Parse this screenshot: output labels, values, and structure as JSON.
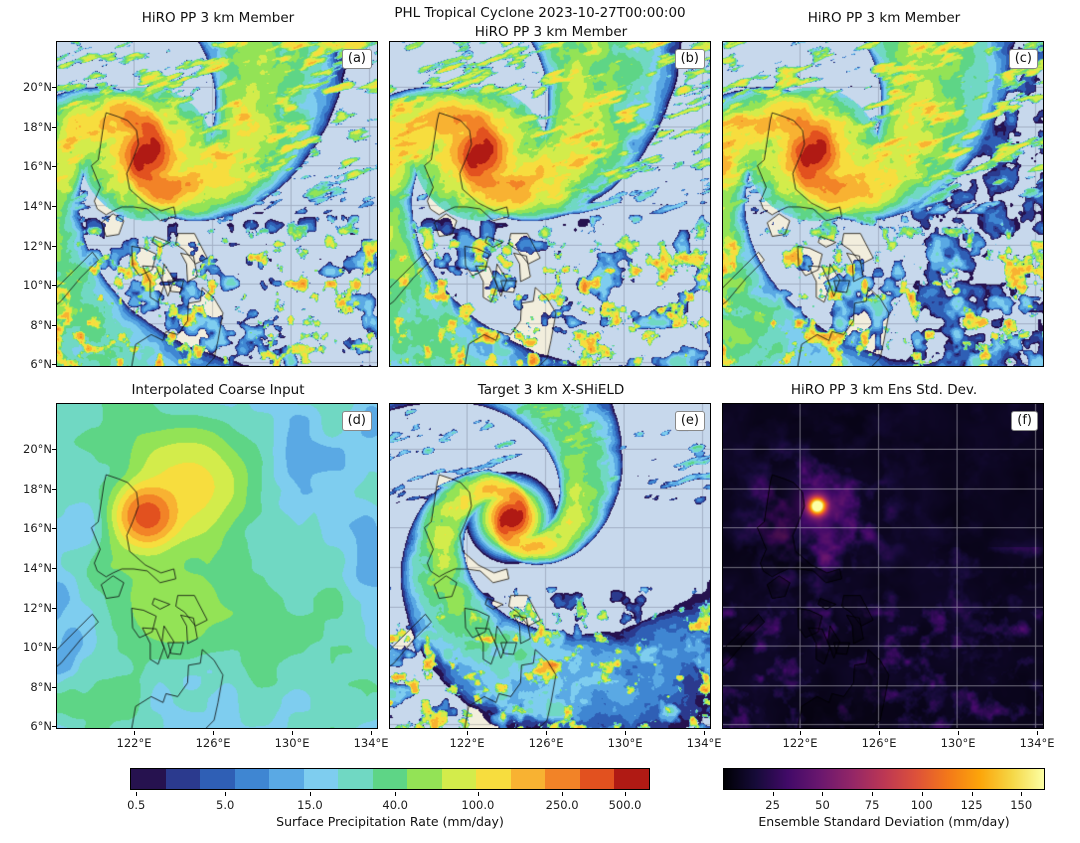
{
  "figure": {
    "suptitle": "PHL Tropical Cyclone 2023-10-27T00:00:00"
  },
  "panels": [
    {
      "key": "a",
      "title": "HiRO PP 3 km Member",
      "corner_label": "(a)",
      "field": "member",
      "seed": 11,
      "drizzle": false,
      "row": 0,
      "col": 0
    },
    {
      "key": "b",
      "title": "HiRO PP 3 km Member",
      "corner_label": "(b)",
      "field": "member",
      "seed": 22,
      "drizzle": false,
      "row": 0,
      "col": 1
    },
    {
      "key": "c",
      "title": "HiRO PP 3 km Member",
      "corner_label": "(c)",
      "field": "member",
      "seed": 37,
      "drizzle": true,
      "row": 0,
      "col": 2
    },
    {
      "key": "d",
      "title": "Interpolated Coarse Input",
      "corner_label": "(d)",
      "field": "coarse",
      "seed": 44,
      "drizzle": false,
      "row": 1,
      "col": 0
    },
    {
      "key": "e",
      "title": "Target 3 km X-SHiELD",
      "corner_label": "(e)",
      "field": "target",
      "seed": 55,
      "drizzle": false,
      "row": 1,
      "col": 1
    },
    {
      "key": "f",
      "title": "HiRO PP 3 km Ens Std. Dev.",
      "corner_label": "(f)",
      "field": "stddev",
      "seed": 66,
      "drizzle": false,
      "row": 1,
      "col": 2
    }
  ],
  "axes": {
    "lon_range": [
      118.1,
      134.4
    ],
    "lat_range": [
      5.8,
      22.3
    ],
    "lat_ticks": [
      {
        "value": 20,
        "label": "20°N"
      },
      {
        "value": 18,
        "label": "18°N"
      },
      {
        "value": 16,
        "label": "16°N"
      },
      {
        "value": 14,
        "label": "14°N"
      },
      {
        "value": 12,
        "label": "12°N"
      },
      {
        "value": 10,
        "label": "10°N"
      },
      {
        "value": 8,
        "label": "8°N"
      },
      {
        "value": 6,
        "label": "6°N"
      }
    ],
    "lon_ticks": [
      {
        "value": 122,
        "label": "122°E"
      },
      {
        "value": 126,
        "label": "126°E"
      },
      {
        "value": 130,
        "label": "130°E"
      },
      {
        "value": 134,
        "label": "134°E"
      }
    ]
  },
  "storm": {
    "member_center": [
      122.7,
      16.6
    ],
    "target_center": [
      124.3,
      16.5
    ],
    "stddev_peak": [
      122.9,
      17.1
    ]
  },
  "colors": {
    "ocean": "#c7d8ec",
    "land": "#f2eedd",
    "coastline": "#111111",
    "grid": "#8e99ad"
  },
  "colorbars": [
    {
      "name": "precip",
      "label": "Surface Precipitation Rate (mm/day)",
      "scale": "log",
      "segments": [
        "#26124f",
        "#2b3a8e",
        "#2f5fb5",
        "#3f86d2",
        "#5aa9e4",
        "#7ecdef",
        "#70d8c3",
        "#5ed586",
        "#93e356",
        "#d3ec4b",
        "#f7dd3e",
        "#f8b232",
        "#f28327",
        "#e2511f",
        "#b01a14"
      ],
      "ticks": [
        {
          "pos": 0.012,
          "label": "0.5"
        },
        {
          "pos": 0.183,
          "label": "5.0"
        },
        {
          "pos": 0.346,
          "label": "15.0"
        },
        {
          "pos": 0.51,
          "label": "40.0"
        },
        {
          "pos": 0.669,
          "label": "100.0"
        },
        {
          "pos": 0.831,
          "label": "250.0"
        },
        {
          "pos": 0.952,
          "label": "500.0"
        }
      ]
    },
    {
      "name": "stddev",
      "label": "Ensemble Standard Deviation (mm/day)",
      "scale": "linear",
      "range": [
        0,
        162
      ],
      "gradient": [
        "#000004",
        "#160b39",
        "#420a68",
        "#6a176e",
        "#932667",
        "#bc3754",
        "#dd513a",
        "#f37819",
        "#fca50a",
        "#f5d746",
        "#fcffa4"
      ],
      "ticks": [
        {
          "pos": 0.154,
          "label": "25"
        },
        {
          "pos": 0.309,
          "label": "50"
        },
        {
          "pos": 0.463,
          "label": "75"
        },
        {
          "pos": 0.617,
          "label": "100"
        },
        {
          "pos": 0.772,
          "label": "125"
        },
        {
          "pos": 0.926,
          "label": "150"
        }
      ]
    }
  ],
  "chart_data": [
    {
      "type": "heatmap",
      "panel": "a",
      "title": "HiRO PP 3 km Member",
      "variable": "Surface Precipitation Rate (mm/day)",
      "color_scale": "log",
      "color_ticks": [
        0.5,
        5.0,
        15.0,
        40.0,
        100.0,
        250.0,
        500.0
      ],
      "x_ticks": [
        "122°E",
        "126°E",
        "130°E",
        "134°E"
      ],
      "y_ticks": [
        "20°N",
        "18°N",
        "16°N",
        "14°N",
        "12°N",
        "10°N",
        "8°N",
        "6°N"
      ],
      "extent": {
        "lon_e": [
          118.1,
          134.4
        ],
        "lat_n": [
          5.8,
          22.3
        ]
      },
      "peak": {
        "lon_e": 122.7,
        "lat_n": 16.6,
        "approx_mm_day": 500
      },
      "description": "Generated 3 km ensemble member: tropical cyclone west of Luzon with red core >500 mm/day, spiral rainbands, elongated streaks to the northeast and scattered convection south of 13°N."
    },
    {
      "type": "heatmap",
      "panel": "b",
      "title": "HiRO PP 3 km Member",
      "variable": "Surface Precipitation Rate (mm/day)",
      "color_scale": "log",
      "color_ticks": [
        0.5,
        5.0,
        15.0,
        40.0,
        100.0,
        250.0,
        500.0
      ],
      "x_ticks": [
        "122°E",
        "126°E",
        "130°E",
        "134°E"
      ],
      "y_ticks": [
        "20°N",
        "18°N",
        "16°N",
        "14°N",
        "12°N",
        "10°N",
        "8°N",
        "6°N"
      ],
      "extent": {
        "lon_e": [
          118.1,
          134.4
        ],
        "lat_n": [
          5.8,
          22.3
        ]
      },
      "peak": {
        "lon_e": 122.7,
        "lat_n": 16.6,
        "approx_mm_day": 500
      },
      "description": "Second ensemble member sample with very similar cyclone core position and rainband structure."
    },
    {
      "type": "heatmap",
      "panel": "c",
      "title": "HiRO PP 3 km Member",
      "variable": "Surface Precipitation Rate (mm/day)",
      "color_scale": "log",
      "color_ticks": [
        0.5,
        5.0,
        15.0,
        40.0,
        100.0,
        250.0,
        500.0
      ],
      "x_ticks": [
        "122°E",
        "126°E",
        "130°E",
        "134°E"
      ],
      "y_ticks": [
        "20°N",
        "18°N",
        "16°N",
        "14°N",
        "12°N",
        "10°N",
        "8°N",
        "6°N"
      ],
      "extent": {
        "lon_e": [
          118.1,
          134.4
        ],
        "lat_n": [
          5.8,
          22.3
        ]
      },
      "peak": {
        "lon_e": 122.7,
        "lat_n": 16.6,
        "approx_mm_day": 500
      },
      "description": "Third ensemble member sample; same cyclone plus a broader shield of light drizzle over the eastern half of the domain."
    },
    {
      "type": "heatmap",
      "panel": "d",
      "title": "Interpolated Coarse Input",
      "variable": "Surface Precipitation Rate (mm/day)",
      "color_scale": "log",
      "color_ticks": [
        0.5,
        5.0,
        15.0,
        40.0,
        100.0,
        250.0,
        500.0
      ],
      "x_ticks": [
        "122°E",
        "126°E",
        "130°E",
        "134°E"
      ],
      "y_ticks": [
        "20°N",
        "18°N",
        "16°N",
        "14°N",
        "12°N",
        "10°N",
        "8°N",
        "6°N"
      ],
      "extent": {
        "lon_e": [
          118.1,
          134.4
        ],
        "lat_n": [
          5.8,
          22.3
        ]
      },
      "peak": {
        "lon_e": 122.7,
        "lat_n": 16.6,
        "approx_mm_day": 300
      },
      "description": "Smooth coarse-resolution input interpolated to 3 km: broad light-to-moderate rain over most of the domain with one smooth orange/red maximum at the cyclone core."
    },
    {
      "type": "heatmap",
      "panel": "e",
      "title": "Target 3 km X-SHiELD",
      "variable": "Surface Precipitation Rate (mm/day)",
      "color_scale": "log",
      "color_ticks": [
        0.5,
        5.0,
        15.0,
        40.0,
        100.0,
        250.0,
        500.0
      ],
      "x_ticks": [
        "122°E",
        "126°E",
        "130°E",
        "134°E"
      ],
      "y_ticks": [
        "20°N",
        "18°N",
        "16°N",
        "14°N",
        "12°N",
        "10°N",
        "8°N",
        "6°N"
      ],
      "extent": {
        "lon_e": [
          118.1,
          134.4
        ],
        "lat_n": [
          5.8,
          22.3
        ]
      },
      "peak": {
        "lon_e": 124.3,
        "lat_n": 16.5,
        "approx_mm_day": 500
      },
      "description": "High-resolution target simulation: compact symmetric cyclone near 124.3°E, 16.5°N with tight spiral bands and scattered cells in the south."
    },
    {
      "type": "heatmap",
      "panel": "f",
      "title": "HiRO PP 3 km Ens Std. Dev.",
      "variable": "Ensemble Standard Deviation (mm/day)",
      "color_scale": "linear",
      "color_ticks": [
        25,
        50,
        75,
        100,
        125,
        150
      ],
      "x_ticks": [
        "122°E",
        "126°E",
        "130°E",
        "134°E"
      ],
      "y_ticks": [
        "20°N",
        "18°N",
        "16°N",
        "14°N",
        "12°N",
        "10°N",
        "8°N",
        "6°N"
      ],
      "extent": {
        "lon_e": [
          118.1,
          134.4
        ],
        "lat_n": [
          5.8,
          22.3
        ]
      },
      "peak": {
        "lon_e": 122.9,
        "lat_n": 17.1,
        "approx_mm_day": 150
      },
      "description": "Ensemble spread: mostly below 25 mm/day (dark), bright yellow maximum ~150 mm/day at the cyclone core northeast of Luzon, faint purple filaments along rainbands."
    }
  ]
}
